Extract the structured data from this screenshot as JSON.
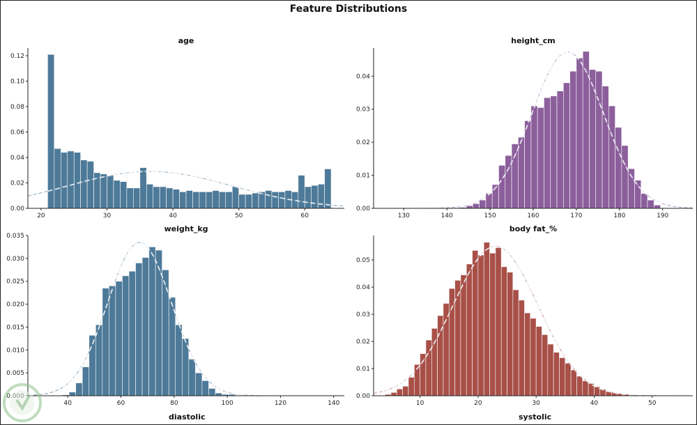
{
  "suptitle": "Feature Distributions",
  "bottom_labels": {
    "left": "diastolic",
    "right": "systolic"
  },
  "chart_data": [
    {
      "type": "bar",
      "title": "age",
      "color": "#4e7a99",
      "kde_color": "#7f9fb5",
      "xlim": [
        18,
        66
      ],
      "ylim": [
        0,
        0.126
      ],
      "xticks": [
        20,
        30,
        40,
        50,
        60
      ],
      "yticks": [
        0,
        0.02,
        0.04,
        0.06,
        0.08,
        0.1,
        0.12
      ],
      "ytick_labels": [
        "0.00",
        "0.02",
        "0.04",
        "0.06",
        "0.08",
        "0.10",
        "0.12"
      ],
      "bin_start": 21,
      "bin_width": 1,
      "values": [
        0.121,
        0.047,
        0.044,
        0.045,
        0.044,
        0.038,
        0.037,
        0.028,
        0.027,
        0.026,
        0.022,
        0.021,
        0.016,
        0.016,
        0.032,
        0.019,
        0.017,
        0.017,
        0.016,
        0.015,
        0.013,
        0.014,
        0.013,
        0.013,
        0.013,
        0.014,
        0.013,
        0.013,
        0.017,
        0.011,
        0.011,
        0.012,
        0.013,
        0.014,
        0.013,
        0.013,
        0.014,
        0.013,
        0.026,
        0.017,
        0.018,
        0.019,
        0.031
      ],
      "kde": {
        "mean": 36.5,
        "sd": 12.5,
        "peak": 0.029
      }
    },
    {
      "type": "bar",
      "title": "height_cm",
      "color": "#8c5f9c",
      "kde_color": "#b89cc4",
      "xlim": [
        123,
        197
      ],
      "ylim": [
        0,
        0.0485
      ],
      "xticks": [
        130,
        140,
        150,
        160,
        170,
        180,
        190
      ],
      "yticks": [
        0,
        0.01,
        0.02,
        0.03,
        0.04
      ],
      "ytick_labels": [
        "0.00",
        "0.01",
        "0.02",
        "0.03",
        "0.04"
      ],
      "bin_start": 143,
      "bin_width": 1.5,
      "values": [
        0.0003,
        0.0008,
        0.0014,
        0.0025,
        0.0045,
        0.0072,
        0.013,
        0.016,
        0.0195,
        0.0215,
        0.0265,
        0.031,
        0.0305,
        0.0335,
        0.034,
        0.0355,
        0.038,
        0.0415,
        0.0455,
        0.0475,
        0.042,
        0.0415,
        0.037,
        0.031,
        0.0245,
        0.019,
        0.012,
        0.0085,
        0.0045,
        0.0025,
        0.001
      ],
      "kde": {
        "mean": 168,
        "sd": 8.3,
        "peak": 0.0473
      }
    },
    {
      "type": "bar",
      "title": "weight_kg",
      "color": "#4e7a99",
      "kde_color": "#7f9fb5",
      "xlim": [
        25,
        144
      ],
      "ylim": [
        0,
        0.035
      ],
      "xticks": [
        40,
        60,
        80,
        100,
        120,
        140
      ],
      "yticks": [
        0,
        0.005,
        0.01,
        0.015,
        0.02,
        0.025,
        0.03,
        0.035
      ],
      "ytick_labels": [
        "0.000",
        "0.005",
        "0.010",
        "0.015",
        "0.020",
        "0.025",
        "0.030",
        "0.035"
      ],
      "bin_start": 38,
      "bin_width": 2.5,
      "values": [
        0.0002,
        0.0008,
        0.0028,
        0.0063,
        0.0132,
        0.0155,
        0.0235,
        0.024,
        0.025,
        0.0262,
        0.0272,
        0.029,
        0.0302,
        0.0325,
        0.0318,
        0.0275,
        0.0215,
        0.0155,
        0.0125,
        0.008,
        0.005,
        0.0033,
        0.0016,
        0.0006,
        0.0003,
        0.0003,
        0.0001,
        0.0001
      ],
      "kde": {
        "mean": 67,
        "sd": 12,
        "peak": 0.0335
      }
    },
    {
      "type": "bar",
      "title": "body fat_%",
      "color": "#a85048",
      "kde_color": "#c9908a",
      "xlim": [
        2,
        57
      ],
      "ylim": [
        0,
        0.059
      ],
      "xticks": [
        10,
        20,
        30,
        40,
        50
      ],
      "yticks": [
        0,
        0.01,
        0.02,
        0.03,
        0.04,
        0.05
      ],
      "ytick_labels": [
        "0.00",
        "0.01",
        "0.02",
        "0.03",
        "0.04",
        "0.05"
      ],
      "bin_start": 4,
      "bin_width": 1,
      "values": [
        0.0005,
        0.0012,
        0.0025,
        0.0035,
        0.0068,
        0.0115,
        0.0155,
        0.0205,
        0.0248,
        0.0295,
        0.034,
        0.0395,
        0.0425,
        0.0445,
        0.0485,
        0.0535,
        0.0518,
        0.0565,
        0.0525,
        0.0545,
        0.0475,
        0.0455,
        0.039,
        0.0352,
        0.0305,
        0.0285,
        0.0255,
        0.0225,
        0.019,
        0.016,
        0.014,
        0.012,
        0.0095,
        0.0072,
        0.0055,
        0.0045,
        0.0033,
        0.0024,
        0.0016,
        0.0012,
        0.0008,
        0.0006,
        0.0004,
        0.0003,
        0.0002,
        0.0001
      ],
      "kde": {
        "mean": 23,
        "sd": 7.3,
        "peak": 0.055
      }
    }
  ]
}
